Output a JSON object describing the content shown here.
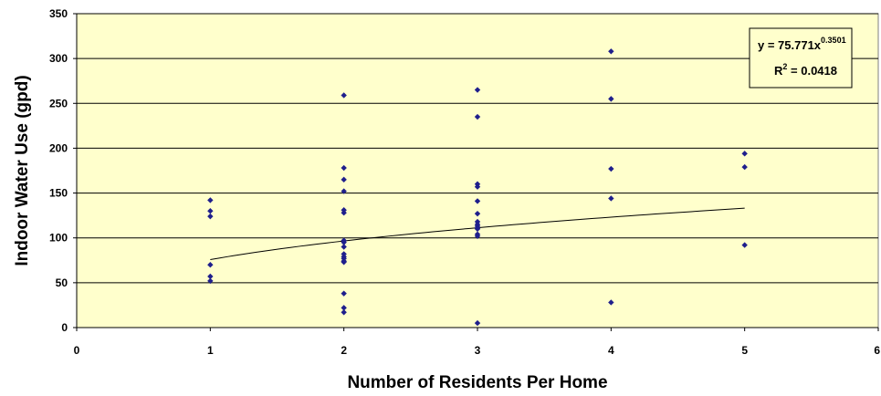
{
  "chart_data": {
    "type": "scatter",
    "title": "",
    "xlabel": "Number of Residents Per Home",
    "ylabel": "Indoor Water Use (gpd)",
    "xlim": [
      0,
      6
    ],
    "ylim": [
      0,
      350
    ],
    "xticks": [
      0,
      1,
      2,
      3,
      4,
      5,
      6
    ],
    "yticks": [
      0,
      50,
      100,
      150,
      200,
      250,
      300,
      350
    ],
    "grid": {
      "horizontal": true,
      "vertical": false
    },
    "colors": {
      "plot_background": "#ffffcc",
      "marker": "#1f1f8c",
      "grid": "#000000",
      "trendline": "#000000",
      "annotation_background": "#ffffcc"
    },
    "series": [
      {
        "marker": "diamond",
        "x": [
          1,
          1,
          1,
          1,
          1,
          1,
          2,
          2,
          2,
          2,
          2,
          2,
          2,
          2,
          2,
          2,
          2,
          2,
          2,
          2,
          2,
          2,
          2,
          2,
          2,
          3,
          3,
          3,
          3,
          3,
          3,
          3,
          3,
          3,
          3,
          3,
          3,
          3,
          3,
          4,
          4,
          4,
          4,
          4,
          5,
          5,
          5
        ],
        "y": [
          142,
          130,
          124,
          70,
          57,
          52,
          259,
          178,
          165,
          152,
          131,
          128,
          97,
          95,
          90,
          82,
          79,
          77,
          74,
          74,
          73,
          38,
          22,
          17,
          97,
          265,
          235,
          160,
          157,
          141,
          127,
          118,
          115,
          113,
          111,
          110,
          104,
          102,
          5,
          308,
          255,
          177,
          144,
          28,
          194,
          179,
          92
        ]
      }
    ],
    "trendline": {
      "type": "power",
      "a": 75.771,
      "b": 0.3501,
      "x_range": [
        1,
        5
      ],
      "equation_main": "y = 75.771x",
      "equation_exp": "0.3501",
      "r2_prefix": "R",
      "r2_sup": "2",
      "r2_value": " = 0.0418"
    }
  }
}
